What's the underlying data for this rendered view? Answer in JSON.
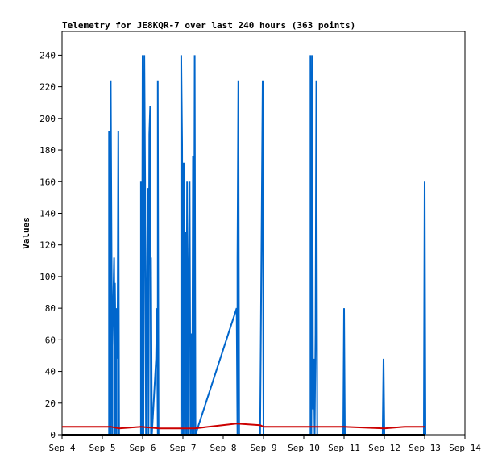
{
  "chart_data": {
    "type": "line",
    "title": "Telemetry for JE8KQR-7 over last 240 hours (363 points)",
    "xlabel": "",
    "ylabel": "Values",
    "x_ticks": [
      "Sep 4",
      "Sep 5",
      "Sep 6",
      "Sep 7",
      "Sep 8",
      "Sep 9",
      "Sep 10",
      "Sep 11",
      "Sep 12",
      "Sep 13",
      "Sep 14"
    ],
    "y_ticks": [
      "0",
      "20",
      "40",
      "60",
      "80",
      "100",
      "120",
      "140",
      "160",
      "180",
      "200",
      "220",
      "240"
    ],
    "xlim": [
      "Sep 4",
      "Sep 14"
    ],
    "ylim": [
      0,
      255
    ],
    "grid": false,
    "legend": "none",
    "series": [
      {
        "color": "#0066cc",
        "points": [
          [
            "Sep 5 04:00",
            0
          ],
          [
            "Sep 5 04:00",
            192
          ],
          [
            "Sep 5 04:30",
            0
          ],
          [
            "Sep 5 04:30",
            80
          ],
          [
            "Sep 5 05:00",
            0
          ],
          [
            "Sep 5 05:00",
            224
          ],
          [
            "Sep 5 06:00",
            0
          ],
          [
            "Sep 5 06:00",
            56
          ],
          [
            "Sep 5 07:00",
            112
          ],
          [
            "Sep 5 07:30",
            0
          ],
          [
            "Sep 5 07:30",
            96
          ],
          [
            "Sep 5 08:30",
            0
          ],
          [
            "Sep 5 08:30",
            80
          ],
          [
            "Sep 5 09:00",
            48
          ],
          [
            "Sep 5 09:30",
            192
          ],
          [
            "Sep 5 10:00",
            0
          ],
          [
            "Sep 5 10:00",
            0
          ],
          [
            "Sep 5 23:00",
            0
          ],
          [
            "Sep 5 23:00",
            160
          ],
          [
            "Sep 5 23:30",
            0
          ],
          [
            "Sep 6 00:00",
            240
          ],
          [
            "Sep 6 00:30",
            0
          ],
          [
            "Sep 6 01:00",
            240
          ],
          [
            "Sep 6 01:30",
            160
          ],
          [
            "Sep 6 02:00",
            0
          ],
          [
            "Sep 6 03:00",
            156
          ],
          [
            "Sep 6 03:30",
            0
          ],
          [
            "Sep 6 04:00",
            190
          ],
          [
            "Sep 6 04:30",
            208
          ],
          [
            "Sep 6 05:00",
            0
          ],
          [
            "Sep 6 05:00",
            112
          ],
          [
            "Sep 6 05:30",
            0
          ],
          [
            "Sep 6 08:00",
            48
          ],
          [
            "Sep 6 08:30",
            80
          ],
          [
            "Sep 6 09:00",
            0
          ],
          [
            "Sep 6 09:00",
            224
          ],
          [
            "Sep 6 09:30",
            0
          ],
          [
            "Sep 6 10:00",
            0
          ],
          [
            "Sep 6 23:00",
            0
          ],
          [
            "Sep 6 23:00",
            240
          ],
          [
            "Sep 6 23:30",
            184
          ],
          [
            "Sep 7 00:00",
            0
          ],
          [
            "Sep 7 00:30",
            172
          ],
          [
            "Sep 7 01:00",
            0
          ],
          [
            "Sep 7 01:30",
            128
          ],
          [
            "Sep 7 02:00",
            0
          ],
          [
            "Sep 7 02:30",
            160
          ],
          [
            "Sep 7 03:00",
            0
          ],
          [
            "Sep 7 03:30",
            96
          ],
          [
            "Sep 7 04:00",
            160
          ],
          [
            "Sep 7 04:30",
            0
          ],
          [
            "Sep 7 05:00",
            64
          ],
          [
            "Sep 7 05:30",
            0
          ],
          [
            "Sep 7 06:00",
            176
          ],
          [
            "Sep 7 06:30",
            0
          ],
          [
            "Sep 7 07:00",
            240
          ],
          [
            "Sep 7 07:30",
            0
          ],
          [
            "Sep 8 08:00",
            80
          ],
          [
            "Sep 8 08:30",
            0
          ],
          [
            "Sep 8 08:30",
            112
          ],
          [
            "Sep 8 09:00",
            224
          ],
          [
            "Sep 8 09:30",
            0
          ],
          [
            "Sep 8 22:00",
            0
          ],
          [
            "Sep 8 23:30",
            224
          ],
          [
            "Sep 9 00:00",
            0
          ],
          [
            "Sep 10 04:00",
            0
          ],
          [
            "Sep 10 04:00",
            240
          ],
          [
            "Sep 10 04:30",
            0
          ],
          [
            "Sep 10 05:00",
            240
          ],
          [
            "Sep 10 05:30",
            16
          ],
          [
            "Sep 10 06:00",
            48
          ],
          [
            "Sep 10 06:30",
            0
          ],
          [
            "Sep 10 07:00",
            64
          ],
          [
            "Sep 10 07:30",
            224
          ],
          [
            "Sep 10 08:00",
            0
          ],
          [
            "Sep 10 23:30",
            0
          ],
          [
            "Sep 11 00:00",
            80
          ],
          [
            "Sep 11 00:30",
            0
          ],
          [
            "Sep 11 23:00",
            0
          ],
          [
            "Sep 11 23:30",
            48
          ],
          [
            "Sep 12 00:00",
            0
          ],
          [
            "Sep 12 23:30",
            0
          ],
          [
            "Sep 13 00:00",
            160
          ],
          [
            "Sep 13 00:30",
            0
          ]
        ]
      },
      {
        "color": "#cc0000",
        "points": [
          [
            "Sep 4 00:00",
            5
          ],
          [
            "Sep 5 05:00",
            5
          ],
          [
            "Sep 5 10:00",
            4
          ],
          [
            "Sep 5 23:00",
            5
          ],
          [
            "Sep 6 10:00",
            4
          ],
          [
            "Sep 6 23:00",
            4
          ],
          [
            "Sep 7 07:00",
            4
          ],
          [
            "Sep 8 08:00",
            7
          ],
          [
            "Sep 8 22:00",
            6
          ],
          [
            "Sep 9 00:00",
            5
          ],
          [
            "Sep 10 04:00",
            5
          ],
          [
            "Sep 11 00:00",
            5
          ],
          [
            "Sep 12 00:00",
            4
          ],
          [
            "Sep 12 12:00",
            5
          ],
          [
            "Sep 13 00:00",
            5
          ]
        ]
      },
      {
        "color": "#000000",
        "points": [
          [
            "Sep 4 00:00",
            0
          ],
          [
            "Sep 13 00:00",
            0
          ]
        ]
      }
    ]
  }
}
